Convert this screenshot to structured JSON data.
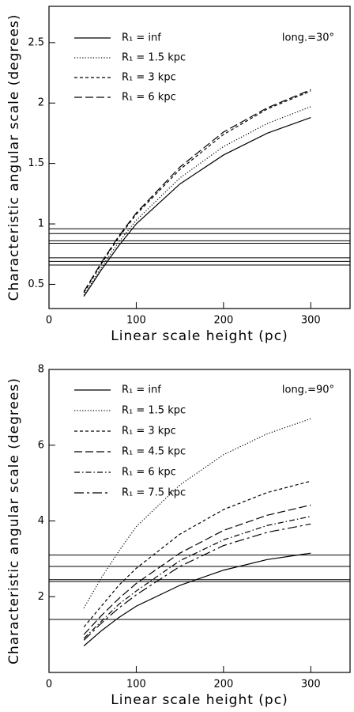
{
  "chart_data": [
    {
      "type": "line",
      "xlabel": "Linear scale height (pc)",
      "ylabel": "Characteristic angular scale (degrees)",
      "annotation": "long.=30°",
      "x": [
        40,
        60,
        80,
        100,
        150,
        200,
        250,
        300
      ],
      "xlim": [
        0,
        345
      ],
      "xticks": [
        0,
        100,
        200,
        300
      ],
      "ylim": [
        0.3,
        2.8
      ],
      "yticks": [
        0.5,
        1,
        1.5,
        2,
        2.5
      ],
      "hlines": [
        0.96,
        0.92,
        0.86,
        0.84,
        0.72,
        0.69,
        0.66
      ],
      "series": [
        {
          "name": "R₁ = inf",
          "color": "#000000",
          "dash": "solid",
          "values": [
            0.4,
            0.62,
            0.82,
            1.0,
            1.33,
            1.57,
            1.75,
            1.88
          ]
        },
        {
          "name": "R₁ = 1.5 kpc",
          "color": "#000000",
          "dash": "dotted",
          "values": [
            0.41,
            0.64,
            0.85,
            1.03,
            1.38,
            1.64,
            1.83,
            1.97
          ]
        },
        {
          "name": "R₁ = 3 kpc",
          "color": "#000000",
          "dash": "dashed",
          "values": [
            0.43,
            0.67,
            0.89,
            1.08,
            1.45,
            1.74,
            1.95,
            2.1
          ]
        },
        {
          "name": "R₁ = 6 kpc",
          "color": "#000000",
          "dash": "longdash",
          "values": [
            0.44,
            0.68,
            0.9,
            1.09,
            1.47,
            1.76,
            1.96,
            2.11
          ]
        }
      ]
    },
    {
      "type": "line",
      "xlabel": "Linear scale height (pc)",
      "ylabel": "Characteristic angular scale (degrees)",
      "annotation": "long.=90°",
      "x": [
        40,
        60,
        80,
        100,
        150,
        200,
        250,
        300
      ],
      "xlim": [
        0,
        345
      ],
      "xticks": [
        0,
        100,
        200,
        300
      ],
      "ylim": [
        0,
        8
      ],
      "yticks": [
        2,
        4,
        6,
        8
      ],
      "hlines": [
        3.1,
        2.8,
        2.45,
        2.4,
        1.4
      ],
      "series": [
        {
          "name": "R₁ = inf",
          "color": "#000000",
          "dash": "solid",
          "values": [
            0.7,
            1.1,
            1.45,
            1.75,
            2.3,
            2.7,
            2.98,
            3.15
          ]
        },
        {
          "name": "R₁ = 1.5 kpc",
          "color": "#000000",
          "dash": "dotted",
          "values": [
            1.7,
            2.5,
            3.2,
            3.85,
            4.95,
            5.75,
            6.3,
            6.7
          ]
        },
        {
          "name": "R₁ = 3 kpc",
          "color": "#000000",
          "dash": "dashed",
          "values": [
            1.2,
            1.75,
            2.3,
            2.75,
            3.65,
            4.3,
            4.75,
            5.05
          ]
        },
        {
          "name": "R₁ = 4.5 kpc",
          "color": "#000000",
          "dash": "longdash",
          "values": [
            1.0,
            1.5,
            1.95,
            2.35,
            3.15,
            3.75,
            4.15,
            4.42
          ]
        },
        {
          "name": "R₁ = 6 kpc",
          "color": "#000000",
          "dash": "dashdot",
          "values": [
            0.9,
            1.35,
            1.8,
            2.15,
            2.95,
            3.5,
            3.88,
            4.12
          ]
        },
        {
          "name": "R₁ = 7.5 kpc",
          "color": "#000000",
          "dash": "longdashdot",
          "values": [
            0.85,
            1.3,
            1.7,
            2.05,
            2.8,
            3.35,
            3.7,
            3.92
          ]
        }
      ]
    }
  ]
}
